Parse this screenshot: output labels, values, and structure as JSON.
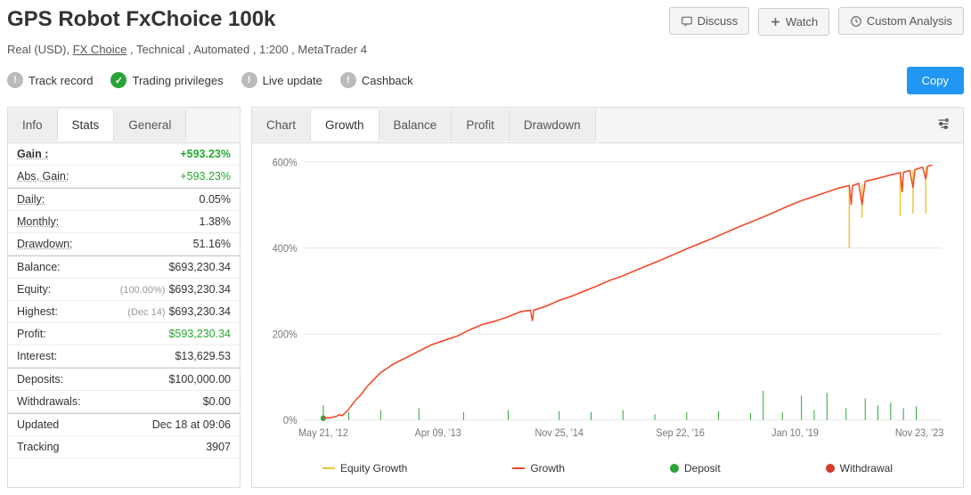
{
  "header": {
    "title": "GPS Robot FxChoice 100k",
    "buttons": {
      "discuss": "Discuss",
      "watch": "Watch",
      "custom": "Custom Analysis",
      "copy": "Copy"
    }
  },
  "subtitle": {
    "real": "Real (USD)",
    "broker": "FX Choice",
    "rest": ", Technical , Automated , 1:200 , MetaTrader 4"
  },
  "status": {
    "track": "Track record",
    "privileges": "Trading privileges",
    "live": "Live update",
    "cashback": "Cashback"
  },
  "left_tabs": {
    "info": "Info",
    "stats": "Stats",
    "general": "General"
  },
  "stats": {
    "gain_label": "Gain :",
    "gain_val": "+593.23%",
    "absgain_label": "Abs. Gain:",
    "absgain_val": "+593.23%",
    "daily_label": "Daily:",
    "daily_val": "0.05%",
    "monthly_label": "Monthly:",
    "monthly_val": "1.38%",
    "dd_label": "Drawdown:",
    "dd_val": "51.16%",
    "balance_label": "Balance:",
    "balance_val": "$693,230.34",
    "equity_label": "Equity:",
    "equity_sub": "(100.00%)",
    "equity_val": "$693,230.34",
    "highest_label": "Highest:",
    "highest_sub": "(Dec 14)",
    "highest_val": "$693,230.34",
    "profit_label": "Profit:",
    "profit_val": "$593,230.34",
    "interest_label": "Interest:",
    "interest_val": "$13,629.53",
    "deposits_label": "Deposits:",
    "deposits_val": "$100,000.00",
    "withdrawals_label": "Withdrawals:",
    "withdrawals_val": "$0.00",
    "updated_label": "Updated",
    "updated_val": "Dec 18 at 09:06",
    "tracking_label": "Tracking",
    "tracking_val": "3907"
  },
  "right_tabs": {
    "chart": "Chart",
    "growth": "Growth",
    "balance": "Balance",
    "profit": "Profit",
    "drawdown": "Drawdown"
  },
  "chart": {
    "type": "line",
    "ylim": [
      0,
      600
    ],
    "ytick_step": 200,
    "yticks": [
      "0%",
      "200%",
      "400%",
      "600%"
    ],
    "xticks": [
      "May 21, '12",
      "Apr 09, '13",
      "Nov 25, '14",
      "Sep 22, '16",
      "Jan 10, '19",
      "Nov 23, '23"
    ],
    "xtick_pos": [
      0.03,
      0.21,
      0.4,
      0.59,
      0.77,
      0.965
    ],
    "growth_color": "#f04a2a",
    "equity_color": "#e8c83b",
    "deposit_color": "#2aa336",
    "withdrawal_color": "#d63a2a",
    "grid_color": "#e8e8e8",
    "background_color": "#ffffff",
    "series_growth": [
      [
        0.03,
        5
      ],
      [
        0.04,
        5
      ],
      [
        0.05,
        8
      ],
      [
        0.055,
        12
      ],
      [
        0.06,
        10
      ],
      [
        0.07,
        25
      ],
      [
        0.08,
        45
      ],
      [
        0.09,
        60
      ],
      [
        0.1,
        80
      ],
      [
        0.11,
        95
      ],
      [
        0.12,
        110
      ],
      [
        0.13,
        120
      ],
      [
        0.14,
        130
      ],
      [
        0.16,
        145
      ],
      [
        0.18,
        160
      ],
      [
        0.2,
        175
      ],
      [
        0.22,
        185
      ],
      [
        0.24,
        195
      ],
      [
        0.26,
        210
      ],
      [
        0.28,
        222
      ],
      [
        0.3,
        230
      ],
      [
        0.32,
        240
      ],
      [
        0.34,
        252
      ],
      [
        0.355,
        255
      ],
      [
        0.358,
        230
      ],
      [
        0.36,
        255
      ],
      [
        0.38,
        265
      ],
      [
        0.4,
        278
      ],
      [
        0.42,
        288
      ],
      [
        0.44,
        300
      ],
      [
        0.46,
        312
      ],
      [
        0.48,
        325
      ],
      [
        0.5,
        335
      ],
      [
        0.52,
        348
      ],
      [
        0.54,
        360
      ],
      [
        0.56,
        372
      ],
      [
        0.58,
        385
      ],
      [
        0.6,
        398
      ],
      [
        0.62,
        410
      ],
      [
        0.64,
        422
      ],
      [
        0.66,
        435
      ],
      [
        0.68,
        448
      ],
      [
        0.7,
        460
      ],
      [
        0.72,
        472
      ],
      [
        0.74,
        485
      ],
      [
        0.76,
        498
      ],
      [
        0.78,
        510
      ],
      [
        0.8,
        520
      ],
      [
        0.82,
        530
      ],
      [
        0.84,
        540
      ],
      [
        0.855,
        545
      ],
      [
        0.858,
        500
      ],
      [
        0.86,
        545
      ],
      [
        0.87,
        550
      ],
      [
        0.875,
        500
      ],
      [
        0.88,
        555
      ],
      [
        0.9,
        562
      ],
      [
        0.92,
        570
      ],
      [
        0.935,
        575
      ],
      [
        0.938,
        530
      ],
      [
        0.94,
        576
      ],
      [
        0.95,
        580
      ],
      [
        0.955,
        540
      ],
      [
        0.958,
        582
      ],
      [
        0.97,
        588
      ],
      [
        0.975,
        560
      ],
      [
        0.978,
        590
      ],
      [
        0.985,
        593
      ]
    ],
    "equity_dips": [
      [
        0.855,
        545,
        400
      ],
      [
        0.875,
        548,
        470
      ],
      [
        0.935,
        575,
        475
      ],
      [
        0.955,
        580,
        480
      ],
      [
        0.975,
        588,
        480
      ]
    ],
    "deposit_bars": [
      0.03,
      0.07,
      0.12,
      0.18,
      0.25,
      0.32,
      0.4,
      0.45,
      0.5,
      0.55,
      0.6,
      0.65,
      0.7,
      0.72,
      0.75,
      0.78,
      0.8,
      0.82,
      0.85,
      0.88,
      0.9,
      0.92,
      0.94,
      0.96
    ],
    "deposit_heights": [
      15,
      8,
      10,
      12,
      8,
      10,
      9,
      8,
      10,
      6,
      8,
      9,
      7,
      30,
      8,
      25,
      10,
      28,
      12,
      22,
      15,
      18,
      12,
      14
    ]
  },
  "legend": {
    "equity": "Equity Growth",
    "growth": "Growth",
    "deposit": "Deposit",
    "withdrawal": "Withdrawal"
  }
}
